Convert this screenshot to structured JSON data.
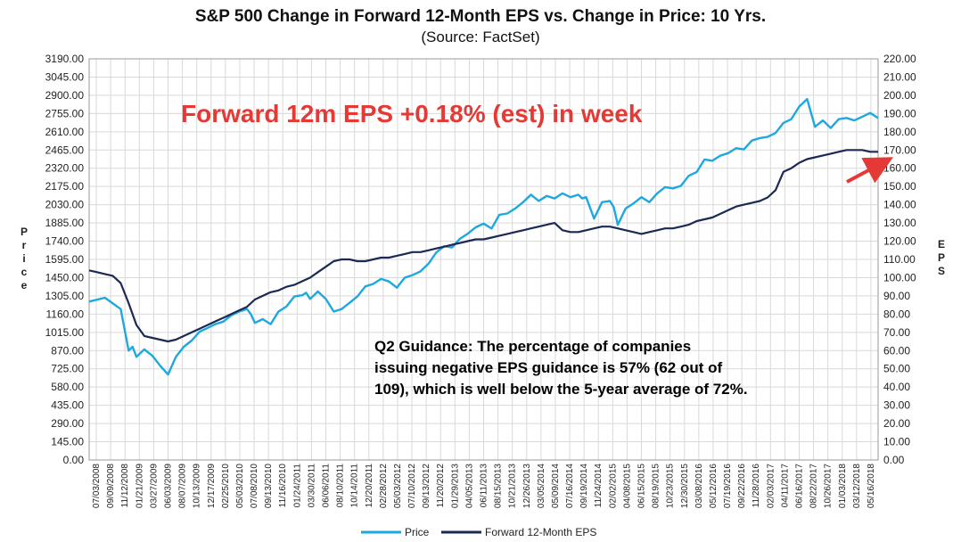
{
  "chart_data": {
    "type": "line",
    "title": "S&P 500 Change in Forward 12-Month EPS vs. Change in Price: 10 Yrs.",
    "subtitle": "(Source: FactSet)",
    "ylabel_left": "Price",
    "ylabel_right": "EPS",
    "ylim_left": [
      0,
      3190
    ],
    "ylim_right": [
      0,
      220
    ],
    "yticks_left": [
      "3190.00",
      "3045.00",
      "2900.00",
      "2755.00",
      "2610.00",
      "2465.00",
      "2320.00",
      "2175.00",
      "2030.00",
      "1885.00",
      "1740.00",
      "1595.00",
      "1450.00",
      "1305.00",
      "1160.00",
      "1015.00",
      "870.00",
      "725.00",
      "580.00",
      "435.00",
      "290.00",
      "145.00",
      "0.00"
    ],
    "yticks_right": [
      "220.00",
      "210.00",
      "200.00",
      "190.00",
      "180.00",
      "170.00",
      "160.00",
      "150.00",
      "140.00",
      "130.00",
      "120.00",
      "110.00",
      "100.00",
      "90.00",
      "80.00",
      "70.00",
      "60.00",
      "50.00",
      "40.00",
      "30.00",
      "20.00",
      "10.00",
      "0.00"
    ],
    "x_tick_labels": [
      "07/03/2008",
      "09/09/2008",
      "11/12/2008",
      "01/21/2009",
      "03/27/2009",
      "06/03/2009",
      "08/07/2009",
      "10/13/2009",
      "12/17/2009",
      "02/25/2010",
      "05/03/2010",
      "07/08/2010",
      "09/13/2010",
      "11/16/2010",
      "01/24/2011",
      "03/30/2011",
      "06/06/2011",
      "08/10/2011",
      "10/14/2011",
      "12/20/2011",
      "02/28/2012",
      "05/03/2012",
      "07/10/2012",
      "09/13/2012",
      "11/20/2012",
      "01/29/2013",
      "04/05/2013",
      "06/11/2013",
      "08/15/2013",
      "10/21/2013",
      "12/26/2013",
      "03/05/2014",
      "05/09/2014",
      "07/16/2014",
      "09/19/2014",
      "11/24/2014",
      "02/02/2015",
      "04/08/2015",
      "06/15/2015",
      "08/19/2015",
      "10/23/2015",
      "12/30/2015",
      "03/08/2016",
      "05/12/2016",
      "07/19/2016",
      "09/22/2016",
      "11/28/2016",
      "02/03/2017",
      "04/11/2017",
      "06/16/2017",
      "08/22/2017",
      "10/26/2017",
      "01/03/2018",
      "03/12/2018",
      "05/16/2018"
    ],
    "legend_position": "bottom",
    "grid": true,
    "series": [
      {
        "name": "Price",
        "axis": "left",
        "color": "#1ea8e0",
        "x": [
          0,
          0.02,
          0.04,
          0.05,
          0.055,
          0.06,
          0.07,
          0.08,
          0.09,
          0.1,
          0.11,
          0.12,
          0.13,
          0.14,
          0.15,
          0.16,
          0.17,
          0.18,
          0.19,
          0.2,
          0.205,
          0.21,
          0.22,
          0.23,
          0.24,
          0.25,
          0.26,
          0.27,
          0.275,
          0.28,
          0.29,
          0.3,
          0.31,
          0.32,
          0.33,
          0.34,
          0.35,
          0.36,
          0.37,
          0.38,
          0.39,
          0.4,
          0.41,
          0.42,
          0.43,
          0.44,
          0.45,
          0.46,
          0.47,
          0.48,
          0.49,
          0.5,
          0.51,
          0.52,
          0.53,
          0.54,
          0.55,
          0.56,
          0.57,
          0.58,
          0.59,
          0.6,
          0.61,
          0.62,
          0.625,
          0.63,
          0.64,
          0.65,
          0.66,
          0.665,
          0.67,
          0.68,
          0.69,
          0.7,
          0.71,
          0.72,
          0.73,
          0.74,
          0.75,
          0.76,
          0.77,
          0.78,
          0.79,
          0.8,
          0.81,
          0.82,
          0.83,
          0.84,
          0.85,
          0.86,
          0.87,
          0.88,
          0.89,
          0.9,
          0.91,
          0.92,
          0.93,
          0.94,
          0.95,
          0.96,
          0.97,
          0.98,
          0.99,
          1
        ],
        "values": [
          1260,
          1290,
          1200,
          870,
          900,
          820,
          880,
          830,
          750,
          680,
          820,
          900,
          950,
          1020,
          1050,
          1080,
          1100,
          1150,
          1180,
          1200,
          1160,
          1090,
          1120,
          1080,
          1180,
          1220,
          1300,
          1310,
          1330,
          1280,
          1340,
          1280,
          1180,
          1200,
          1250,
          1300,
          1380,
          1400,
          1440,
          1420,
          1370,
          1450,
          1470,
          1500,
          1560,
          1650,
          1700,
          1690,
          1760,
          1800,
          1850,
          1880,
          1840,
          1950,
          1960,
          2000,
          2050,
          2110,
          2060,
          2100,
          2080,
          2120,
          2090,
          2110,
          2080,
          2090,
          1920,
          2050,
          2060,
          2010,
          1870,
          2000,
          2040,
          2090,
          2050,
          2120,
          2170,
          2160,
          2180,
          2260,
          2290,
          2390,
          2380,
          2420,
          2440,
          2480,
          2470,
          2540,
          2560,
          2570,
          2600,
          2680,
          2710,
          2810,
          2870,
          2650,
          2700,
          2640,
          2710,
          2720,
          2700,
          2730,
          2760,
          2720
        ]
      },
      {
        "name": "Forward 12-Month EPS",
        "axis": "right",
        "color": "#1b2a55",
        "x": [
          0,
          0.01,
          0.02,
          0.03,
          0.04,
          0.05,
          0.06,
          0.07,
          0.08,
          0.09,
          0.1,
          0.11,
          0.12,
          0.13,
          0.14,
          0.15,
          0.16,
          0.17,
          0.18,
          0.19,
          0.2,
          0.21,
          0.22,
          0.23,
          0.24,
          0.25,
          0.26,
          0.27,
          0.28,
          0.29,
          0.3,
          0.31,
          0.32,
          0.33,
          0.34,
          0.35,
          0.36,
          0.37,
          0.38,
          0.39,
          0.4,
          0.41,
          0.42,
          0.43,
          0.44,
          0.45,
          0.46,
          0.47,
          0.48,
          0.49,
          0.5,
          0.51,
          0.52,
          0.53,
          0.54,
          0.55,
          0.56,
          0.57,
          0.58,
          0.59,
          0.6,
          0.61,
          0.62,
          0.63,
          0.64,
          0.65,
          0.66,
          0.67,
          0.68,
          0.69,
          0.7,
          0.71,
          0.72,
          0.73,
          0.74,
          0.75,
          0.76,
          0.77,
          0.78,
          0.79,
          0.8,
          0.81,
          0.82,
          0.83,
          0.84,
          0.85,
          0.86,
          0.87,
          0.88,
          0.89,
          0.9,
          0.91,
          0.92,
          0.93,
          0.94,
          0.95,
          0.96,
          0.97,
          0.98,
          0.99,
          1
        ],
        "values": [
          104,
          103,
          102,
          101,
          97,
          86,
          74,
          68,
          67,
          66,
          65,
          66,
          68,
          70,
          72,
          74,
          76,
          78,
          80,
          82,
          84,
          88,
          90,
          92,
          93,
          95,
          96,
          98,
          100,
          103,
          106,
          109,
          110,
          110,
          109,
          109,
          110,
          111,
          111,
          112,
          113,
          114,
          114,
          115,
          116,
          117,
          118,
          119,
          120,
          121,
          121,
          122,
          123,
          124,
          125,
          126,
          127,
          128,
          129,
          130,
          126,
          125,
          125,
          126,
          127,
          128,
          128,
          127,
          126,
          125,
          124,
          125,
          126,
          127,
          127,
          128,
          129,
          131,
          132,
          133,
          135,
          137,
          139,
          140,
          141,
          142,
          144,
          148,
          158,
          160,
          163,
          165,
          166,
          167,
          168,
          169,
          170,
          170,
          170,
          169,
          169
        ]
      }
    ]
  },
  "callout_text": "Forward 12m EPS +0.18% (est) in week",
  "note_lines": [
    "Q2 Guidance: The percentage of companies",
    "issuing negative EPS guidance is 57% (62 out of",
    "109), which is well below the 5-year average of 72%."
  ],
  "colors": {
    "callout": "#e53935",
    "arrow": "#e53935",
    "grid": "#d9d9d9"
  }
}
